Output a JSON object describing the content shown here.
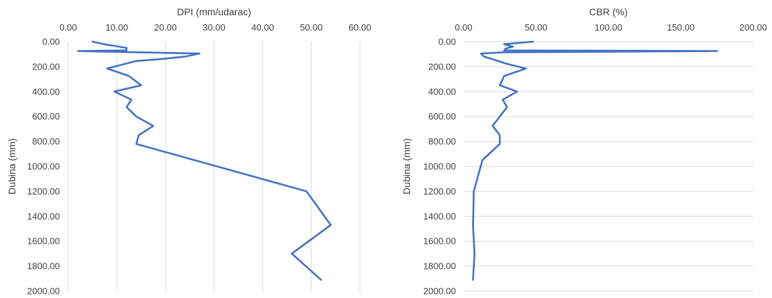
{
  "chart_data": [
    {
      "type": "line",
      "title": "DPI (mm/udarac)",
      "xlabel": "DPI (mm/udarac)",
      "ylabel": "Dubina (mm)",
      "xlim": [
        0,
        60
      ],
      "ylim": [
        0,
        2000
      ],
      "y_reversed": true,
      "x_axis_position": "top",
      "x_ticks": [
        "0.00",
        "10.00",
        "20.00",
        "30.00",
        "40.00",
        "50.00",
        "60.00"
      ],
      "y_ticks": [
        "0.00",
        "200.00",
        "400.00",
        "600.00",
        "800.00",
        "1000.00",
        "1200.00",
        "1400.00",
        "1600.00",
        "1800.00",
        "2000.00"
      ],
      "grid": "vertical",
      "line_color": "#4472c4",
      "points": [
        {
          "x": 5.0,
          "y": 0
        },
        {
          "x": 8.0,
          "y": 25
        },
        {
          "x": 9.0,
          "y": 30
        },
        {
          "x": 12.0,
          "y": 50
        },
        {
          "x": 12.0,
          "y": 70
        },
        {
          "x": 2.0,
          "y": 75
        },
        {
          "x": 27.0,
          "y": 95
        },
        {
          "x": 24.0,
          "y": 120
        },
        {
          "x": 19.0,
          "y": 140
        },
        {
          "x": 14.0,
          "y": 155
        },
        {
          "x": 8.0,
          "y": 215
        },
        {
          "x": 12.5,
          "y": 275
        },
        {
          "x": 15.0,
          "y": 350
        },
        {
          "x": 9.5,
          "y": 400
        },
        {
          "x": 13.0,
          "y": 465
        },
        {
          "x": 12.0,
          "y": 525
        },
        {
          "x": 14.0,
          "y": 600
        },
        {
          "x": 17.5,
          "y": 675
        },
        {
          "x": 14.5,
          "y": 750
        },
        {
          "x": 14.0,
          "y": 820
        },
        {
          "x": 49.0,
          "y": 1200
        },
        {
          "x": 54.0,
          "y": 1470
        },
        {
          "x": 46.0,
          "y": 1700
        },
        {
          "x": 52.0,
          "y": 1910
        }
      ]
    },
    {
      "type": "line",
      "title": "CBR (%)",
      "xlabel": "CBR (%)",
      "ylabel": "Dubina (mm)",
      "xlim": [
        0,
        200
      ],
      "ylim": [
        0,
        2000
      ],
      "y_reversed": true,
      "x_axis_position": "top",
      "x_ticks": [
        "0.00",
        "50.00",
        "100.00",
        "150.00",
        "200.00"
      ],
      "y_ticks": [
        "0.00",
        "200.00",
        "400.00",
        "600.00",
        "800.00",
        "1000.00",
        "1200.00",
        "1400.00",
        "1600.00",
        "1800.00",
        "2000.00"
      ],
      "grid": "horizontal",
      "line_color": "#4472c4",
      "points": [
        {
          "x": 48.0,
          "y": 0
        },
        {
          "x": 28.0,
          "y": 20
        },
        {
          "x": 34.0,
          "y": 40
        },
        {
          "x": 29.0,
          "y": 55
        },
        {
          "x": 28.0,
          "y": 70
        },
        {
          "x": 175.0,
          "y": 75
        },
        {
          "x": 28.0,
          "y": 85
        },
        {
          "x": 12.0,
          "y": 95
        },
        {
          "x": 14.0,
          "y": 120
        },
        {
          "x": 20.0,
          "y": 140
        },
        {
          "x": 29.0,
          "y": 175
        },
        {
          "x": 43.0,
          "y": 215
        },
        {
          "x": 28.0,
          "y": 275
        },
        {
          "x": 25.0,
          "y": 350
        },
        {
          "x": 37.0,
          "y": 400
        },
        {
          "x": 27.0,
          "y": 465
        },
        {
          "x": 30.0,
          "y": 525
        },
        {
          "x": 25.0,
          "y": 600
        },
        {
          "x": 20.0,
          "y": 675
        },
        {
          "x": 25.0,
          "y": 750
        },
        {
          "x": 25.0,
          "y": 820
        },
        {
          "x": 13.0,
          "y": 950
        },
        {
          "x": 7.0,
          "y": 1200
        },
        {
          "x": 6.5,
          "y": 1470
        },
        {
          "x": 7.5,
          "y": 1700
        },
        {
          "x": 6.5,
          "y": 1910
        }
      ]
    }
  ]
}
